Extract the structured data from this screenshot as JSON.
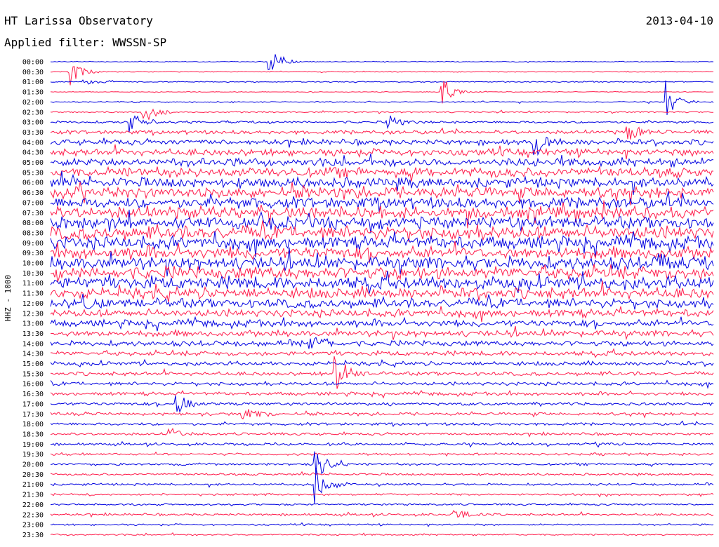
{
  "header": {
    "station": "HT Larissa Observatory",
    "date": "2013-04-10",
    "filter_label": "Applied filter: WWSSN-SP"
  },
  "chart_data": {
    "type": "line",
    "title": "HT Larissa Observatory",
    "date": "2013-04-10",
    "ylabel": "HHZ - 1000",
    "row_labels": [
      "00:00",
      "00:30",
      "01:00",
      "01:30",
      "02:00",
      "02:30",
      "03:00",
      "03:30",
      "04:00",
      "04:30",
      "05:00",
      "05:30",
      "06:00",
      "06:30",
      "07:00",
      "07:30",
      "08:00",
      "08:30",
      "09:00",
      "09:30",
      "10:00",
      "10:30",
      "11:00",
      "11:30",
      "12:00",
      "12:30",
      "13:00",
      "13:30",
      "14:00",
      "14:30",
      "15:00",
      "15:30",
      "16:00",
      "16:30",
      "17:00",
      "17:30",
      "18:00",
      "18:30",
      "19:00",
      "19:30",
      "20:00",
      "20:30",
      "21:00",
      "21:30",
      "22:00",
      "22:30",
      "23:00",
      "23:30"
    ],
    "colors": {
      "even_rows": "#0000e0",
      "odd_rows": "#ff1a4a"
    },
    "noise_levels": [
      0.6,
      0.6,
      0.7,
      0.5,
      0.8,
      1.0,
      1.6,
      2.6,
      3.8,
      4.6,
      5.6,
      6.6,
      6.8,
      7.4,
      7.6,
      8.4,
      8.2,
      9.0,
      8.6,
      8.2,
      8.8,
      8.6,
      8.8,
      7.4,
      6.4,
      5.2,
      4.6,
      4.2,
      3.6,
      3.2,
      2.8,
      2.6,
      2.4,
      2.3,
      2.1,
      2.0,
      1.9,
      1.8,
      1.7,
      1.6,
      1.6,
      1.5,
      1.5,
      1.4,
      1.3,
      1.6,
      1.2,
      1.2
    ],
    "events": [
      {
        "row": 0,
        "t": 0.33,
        "amp": 34
      },
      {
        "row": 1,
        "t": 0.03,
        "amp": 28
      },
      {
        "row": 2,
        "t": 0.05,
        "amp": 10
      },
      {
        "row": 3,
        "t": 0.59,
        "amp": 28
      },
      {
        "row": 4,
        "t": 0.93,
        "amp": 40
      },
      {
        "row": 5,
        "t": 0.14,
        "amp": 20
      },
      {
        "row": 6,
        "t": 0.12,
        "amp": 18
      },
      {
        "row": 6,
        "t": 0.51,
        "amp": 14
      },
      {
        "row": 7,
        "t": 0.87,
        "amp": 24
      },
      {
        "row": 8,
        "t": 0.73,
        "amp": 30
      },
      {
        "row": 20,
        "t": 0.92,
        "amp": 16
      },
      {
        "row": 24,
        "t": 0.05,
        "amp": 14
      },
      {
        "row": 28,
        "t": 0.39,
        "amp": 22
      },
      {
        "row": 31,
        "t": 0.43,
        "amp": 40
      },
      {
        "row": 34,
        "t": 0.19,
        "amp": 18
      },
      {
        "row": 35,
        "t": 0.29,
        "amp": 24
      },
      {
        "row": 37,
        "t": 0.18,
        "amp": 14
      },
      {
        "row": 40,
        "t": 0.4,
        "amp": 32
      },
      {
        "row": 42,
        "t": 0.4,
        "amp": 40
      },
      {
        "row": 45,
        "t": 0.61,
        "amp": 10
      }
    ]
  }
}
